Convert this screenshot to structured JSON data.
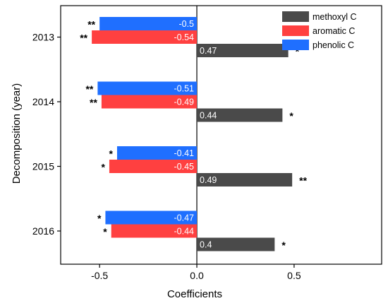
{
  "chart_data": {
    "type": "bar",
    "orientation": "horizontal",
    "title": "",
    "xlabel": "Coefficients",
    "ylabel": "Decomposition (year)",
    "xlim": [
      -0.7,
      0.95
    ],
    "xticks": [
      -0.5,
      0.0,
      0.5
    ],
    "xtick_labels": [
      "-0.5",
      "0.0",
      "0.5"
    ],
    "categories": [
      "2013",
      "2014",
      "2015",
      "2016"
    ],
    "legend_position": "top-right",
    "series": [
      {
        "name": "methoxyl C",
        "color": "#4a4a4a",
        "values": [
          0.47,
          0.44,
          0.49,
          0.4
        ],
        "labels": [
          "0.47",
          "0.44",
          "0.49",
          "0.4"
        ],
        "significance": [
          "*",
          "*",
          "**",
          "*"
        ]
      },
      {
        "name": "aromatic C",
        "color": "#ff4040",
        "values": [
          -0.54,
          -0.49,
          -0.45,
          -0.44
        ],
        "labels": [
          "-0.54",
          "-0.49",
          "-0.45",
          "-0.44"
        ],
        "significance": [
          "**",
          "**",
          "*",
          "*"
        ]
      },
      {
        "name": "phenolic C",
        "color": "#1f6fff",
        "values": [
          -0.5,
          -0.51,
          -0.41,
          -0.47
        ],
        "labels": [
          "-0.5",
          "-0.51",
          "-0.41",
          "-0.47"
        ],
        "significance": [
          "**",
          "**",
          "*",
          "*"
        ]
      }
    ]
  }
}
